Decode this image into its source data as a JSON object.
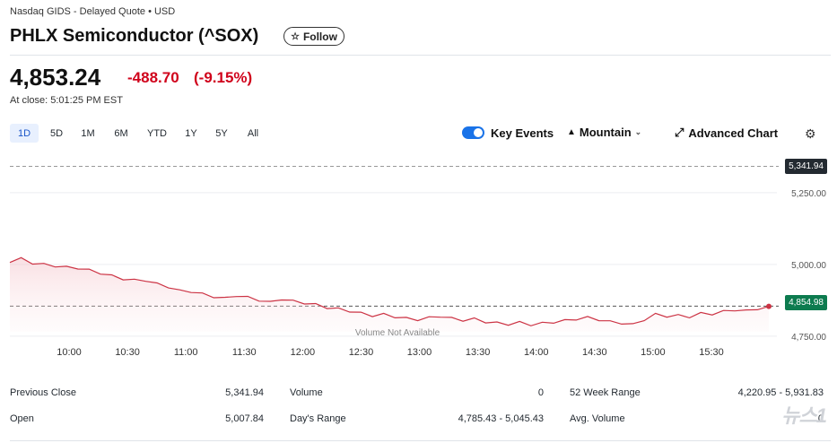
{
  "header": {
    "exchange": "Nasdaq GIDS - Delayed Quote • USD",
    "title": "PHLX Semiconductor (^SOX)",
    "follow_label": "Follow"
  },
  "quote": {
    "price": "4,853.24",
    "change": "-488.70",
    "change_pct": "(-9.15%)",
    "at_close": "At close: 5:01:25 PM EST"
  },
  "ranges": [
    "1D",
    "5D",
    "1M",
    "6M",
    "YTD",
    "1Y",
    "5Y",
    "All"
  ],
  "active_range": "1D",
  "toolbar": {
    "key_events": "Key Events",
    "mountain": "Mountain",
    "advanced_chart": "Advanced Chart"
  },
  "chart_data": {
    "type": "area",
    "x_ticks": [
      "10:00",
      "10:30",
      "11:00",
      "11:30",
      "12:00",
      "12:30",
      "13:00",
      "13:30",
      "14:00",
      "14:30",
      "15:00",
      "15:30"
    ],
    "y_ticks": [
      "5,250.00",
      "5,000.00",
      "4,750.00"
    ],
    "y_tick_values": [
      5250,
      5000,
      4750
    ],
    "previous_close_label": "5,341.94",
    "current_label": "4,854.98",
    "previous_close": 5341.94,
    "current": 4854.98,
    "ylim": [
      4720,
      5400
    ],
    "series_start": "09:30",
    "series_end": "16:00",
    "annotation": "Volume Not Available",
    "values": [
      5007,
      5020,
      5005,
      5000,
      4995,
      4990,
      4988,
      4980,
      4970,
      4960,
      4950,
      4945,
      4945,
      4932,
      4922,
      4908,
      4906,
      4897,
      4888,
      4882,
      4892,
      4885,
      4876,
      4868,
      4880,
      4872,
      4866,
      4860,
      4850,
      4845,
      4838,
      4830,
      4822,
      4826,
      4818,
      4812,
      4808,
      4814,
      4820,
      4812,
      4806,
      4810,
      4800,
      4796,
      4792,
      4798,
      4790,
      4795,
      4799,
      4804,
      4810,
      4815,
      4808,
      4800,
      4796,
      4790,
      4808,
      4826,
      4820,
      4822,
      4818,
      4829,
      4828,
      4836,
      4842,
      4838,
      4846,
      4854
    ]
  },
  "stats": [
    {
      "label": "Previous Close",
      "value": "5,341.94"
    },
    {
      "label": "Volume",
      "value": "0"
    },
    {
      "label": "52 Week Range",
      "value": "4,220.95 - 5,931.83"
    },
    {
      "label": "Open",
      "value": "5,007.84"
    },
    {
      "label": "Day's Range",
      "value": "4,785.43 - 5,045.43"
    },
    {
      "label": "Avg. Volume",
      "value": "0"
    }
  ],
  "watermark": "뉴스1",
  "colors": {
    "negative": "#d0021b",
    "line": "#cc3344",
    "accent": "#1a73e8",
    "current_tag": "#0d7b4f"
  }
}
